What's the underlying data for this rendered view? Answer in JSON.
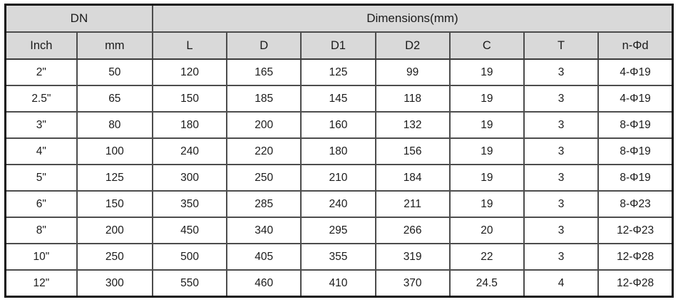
{
  "table": {
    "group_headers": {
      "dn": "DN",
      "dimensions": "Dimensions(mm)"
    },
    "columns": [
      "Inch",
      "mm",
      "L",
      "D",
      "D1",
      "D2",
      "C",
      "T",
      "n-Φd"
    ],
    "rows": [
      [
        "2\"",
        "50",
        "120",
        "165",
        "125",
        "99",
        "19",
        "3",
        "4-Φ19"
      ],
      [
        "2.5\"",
        "65",
        "150",
        "185",
        "145",
        "118",
        "19",
        "3",
        "4-Φ19"
      ],
      [
        "3\"",
        "80",
        "180",
        "200",
        "160",
        "132",
        "19",
        "3",
        "8-Φ19"
      ],
      [
        "4\"",
        "100",
        "240",
        "220",
        "180",
        "156",
        "19",
        "3",
        "8-Φ19"
      ],
      [
        "5\"",
        "125",
        "300",
        "250",
        "210",
        "184",
        "19",
        "3",
        "8-Φ19"
      ],
      [
        "6\"",
        "150",
        "350",
        "285",
        "240",
        "211",
        "19",
        "3",
        "8-Φ23"
      ],
      [
        "8\"",
        "200",
        "450",
        "340",
        "295",
        "266",
        "20",
        "3",
        "12-Φ23"
      ],
      [
        "10\"",
        "250",
        "500",
        "405",
        "355",
        "319",
        "22",
        "3",
        "12-Φ28"
      ],
      [
        "12\"",
        "300",
        "550",
        "460",
        "410",
        "370",
        "24.5",
        "4",
        "12-Φ28"
      ]
    ],
    "colors": {
      "header_bg": "#d9d9d9",
      "row_bg": "#ffffff",
      "outer_border": "#141414",
      "inner_border": "#4c4c4c",
      "text": "#1b1b1b"
    }
  }
}
